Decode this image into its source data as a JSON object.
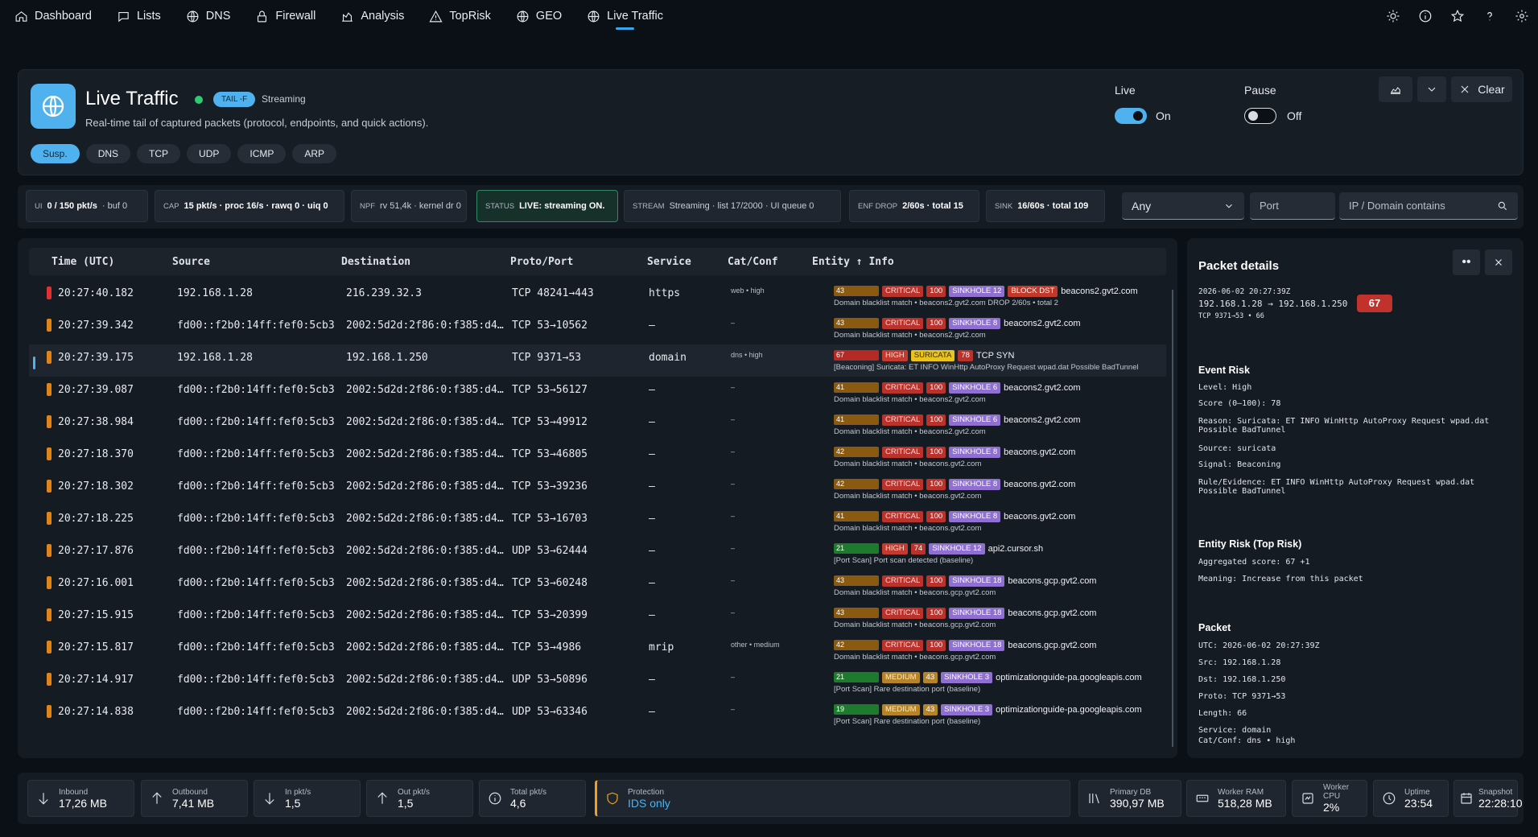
{
  "nav": {
    "items": [
      {
        "label": "Dashboard",
        "icon": "home-icon"
      },
      {
        "label": "Lists",
        "icon": "chat-icon"
      },
      {
        "label": "DNS",
        "icon": "globe-icon"
      },
      {
        "label": "Firewall",
        "icon": "lock-icon"
      },
      {
        "label": "Analysis",
        "icon": "chart-icon"
      },
      {
        "label": "TopRisk",
        "icon": "warning-icon"
      },
      {
        "label": "GEO",
        "icon": "globe-icon"
      },
      {
        "label": "Live Traffic",
        "icon": "globe-icon",
        "active": true
      }
    ],
    "right_icons": [
      "sun-icon",
      "info-icon",
      "star-icon",
      "help-icon",
      "gear-icon"
    ]
  },
  "header": {
    "title": "Live Traffic",
    "badge": "TAIL -F",
    "stream_label": "Streaming",
    "subtitle": "Real-time tail of captured packets (protocol, endpoints, and quick actions).",
    "chips": [
      "Susp.",
      "DNS",
      "TCP",
      "UDP",
      "ICMP",
      "ARP"
    ],
    "live": {
      "label": "Live",
      "value": "On",
      "on": true
    },
    "pause": {
      "label": "Pause",
      "value": "Off",
      "on": false
    },
    "clear_label": "Clear"
  },
  "stats": {
    "ui": {
      "k": "UI",
      "v": "0 / 150 pkt/s",
      "r": "· buf 0"
    },
    "cap": {
      "k": "CAP",
      "v": "15 pkt/s · proc 16/s · rawq 0 · uiq 0"
    },
    "npf": {
      "k": "NPF",
      "r": "rv 51,4k · kernel dr 0"
    },
    "status": {
      "k": "STATUS",
      "v": "LIVE: streaming ON."
    },
    "stream": {
      "k": "STREAM",
      "r": "Streaming · list 17/2000 · UI queue 0"
    },
    "enf": {
      "k": "ENF DROP",
      "v": "2/60s · total 15"
    },
    "sink": {
      "k": "SINK",
      "v": "16/60s · total 109"
    }
  },
  "filters": {
    "any": "Any",
    "port_placeholder": "Port",
    "ip_placeholder": "IP / Domain contains"
  },
  "table": {
    "headers": [
      "Time (UTC)",
      "Source",
      "Destination",
      "Proto/Port",
      "Service",
      "Cat/Conf",
      "Entity ↑ Info"
    ],
    "rows": [
      {
        "time": "20:27:40.182",
        "src": "192.168.1.28",
        "dst": "216.239.32.3",
        "proto": "TCP 48241→443",
        "svc": "https",
        "cat": "web • high",
        "sev": "#e03131",
        "score": "43",
        "scolor": "amber",
        "tags": [
          [
            "CRITICAL",
            "crit"
          ],
          [
            "100",
            "num"
          ],
          [
            "SINKHOLE 12",
            "sink"
          ],
          [
            "BLOCK DST",
            "block"
          ]
        ],
        "domain": "beacons2.gvt2.com",
        "note": "Domain blacklist match • beacons2.gvt2.com   DROP 2/60s • total 2"
      },
      {
        "time": "20:27:39.342",
        "src": "fd00::f2b0:14ff:fef0:5cb3",
        "dst": "2002:5d2d:2f86:0:f385:d4…",
        "proto": "TCP 53→10562",
        "svc": "—",
        "cat": "–",
        "sev": "#e0841a",
        "score": "43",
        "scolor": "amber",
        "tags": [
          [
            "CRITICAL",
            "crit"
          ],
          [
            "100",
            "num"
          ],
          [
            "SINKHOLE 8",
            "sink"
          ]
        ],
        "domain": "beacons2.gvt2.com",
        "note": "Domain blacklist match • beacons2.gvt2.com"
      },
      {
        "time": "20:27:39.175",
        "src": "192.168.1.28",
        "dst": "192.168.1.250",
        "proto": "TCP 9371→53",
        "svc": "domain",
        "cat": "dns • high",
        "sev": "#e0841a",
        "score": "67",
        "scolor": "red",
        "sel": true,
        "tags": [
          [
            "HIGH",
            "high"
          ],
          [
            "SURICATA",
            "suri"
          ],
          [
            "78",
            "num"
          ]
        ],
        "domain": "TCP SYN",
        "note": "[Beaconing] Suricata: ET INFO WinHttp AutoProxy Request wpad.dat Possible BadTunnel"
      },
      {
        "time": "20:27:39.087",
        "src": "fd00::f2b0:14ff:fef0:5cb3",
        "dst": "2002:5d2d:2f86:0:f385:d4…",
        "proto": "TCP 53→56127",
        "svc": "—",
        "cat": "–",
        "sev": "#e0841a",
        "score": "41",
        "scolor": "amber",
        "tags": [
          [
            "CRITICAL",
            "crit"
          ],
          [
            "100",
            "num"
          ],
          [
            "SINKHOLE 6",
            "sink"
          ]
        ],
        "domain": "beacons2.gvt2.com",
        "note": "Domain blacklist match • beacons2.gvt2.com"
      },
      {
        "time": "20:27:38.984",
        "src": "fd00::f2b0:14ff:fef0:5cb3",
        "dst": "2002:5d2d:2f86:0:f385:d4…",
        "proto": "TCP 53→49912",
        "svc": "—",
        "cat": "–",
        "sev": "#e0841a",
        "score": "41",
        "scolor": "amber",
        "tags": [
          [
            "CRITICAL",
            "crit"
          ],
          [
            "100",
            "num"
          ],
          [
            "SINKHOLE 6",
            "sink"
          ]
        ],
        "domain": "beacons2.gvt2.com",
        "note": "Domain blacklist match • beacons2.gvt2.com"
      },
      {
        "time": "20:27:18.370",
        "src": "fd00::f2b0:14ff:fef0:5cb3",
        "dst": "2002:5d2d:2f86:0:f385:d4…",
        "proto": "TCP 53→46805",
        "svc": "—",
        "cat": "–",
        "sev": "#e0841a",
        "score": "42",
        "scolor": "amber",
        "tags": [
          [
            "CRITICAL",
            "crit"
          ],
          [
            "100",
            "num"
          ],
          [
            "SINKHOLE 8",
            "sink"
          ]
        ],
        "domain": "beacons.gvt2.com",
        "note": "Domain blacklist match • beacons.gvt2.com"
      },
      {
        "time": "20:27:18.302",
        "src": "fd00::f2b0:14ff:fef0:5cb3",
        "dst": "2002:5d2d:2f86:0:f385:d4…",
        "proto": "TCP 53→39236",
        "svc": "—",
        "cat": "–",
        "sev": "#e0841a",
        "score": "42",
        "scolor": "amber",
        "tags": [
          [
            "CRITICAL",
            "crit"
          ],
          [
            "100",
            "num"
          ],
          [
            "SINKHOLE 8",
            "sink"
          ]
        ],
        "domain": "beacons.gvt2.com",
        "note": "Domain blacklist match • beacons.gvt2.com"
      },
      {
        "time": "20:27:18.225",
        "src": "fd00::f2b0:14ff:fef0:5cb3",
        "dst": "2002:5d2d:2f86:0:f385:d4…",
        "proto": "TCP 53→16703",
        "svc": "—",
        "cat": "–",
        "sev": "#e0841a",
        "score": "41",
        "scolor": "amber",
        "tags": [
          [
            "CRITICAL",
            "crit"
          ],
          [
            "100",
            "num"
          ],
          [
            "SINKHOLE 8",
            "sink"
          ]
        ],
        "domain": "beacons.gvt2.com",
        "note": "Domain blacklist match • beacons.gvt2.com"
      },
      {
        "time": "20:27:17.876",
        "src": "fd00::f2b0:14ff:fef0:5cb3",
        "dst": "2002:5d2d:2f86:0:f385:d4…",
        "proto": "UDP 53→62444",
        "svc": "—",
        "cat": "–",
        "sev": "#e0841a",
        "score": "21",
        "scolor": "green",
        "tags": [
          [
            "HIGH",
            "high"
          ],
          [
            "74",
            "num"
          ],
          [
            "SINKHOLE 12",
            "sink"
          ]
        ],
        "domain": "api2.cursor.sh",
        "note": "[Port Scan] Port scan detected (baseline)"
      },
      {
        "time": "20:27:16.001",
        "src": "fd00::f2b0:14ff:fef0:5cb3",
        "dst": "2002:5d2d:2f86:0:f385:d4…",
        "proto": "TCP 53→60248",
        "svc": "—",
        "cat": "–",
        "sev": "#e0841a",
        "score": "43",
        "scolor": "amber",
        "tags": [
          [
            "CRITICAL",
            "crit"
          ],
          [
            "100",
            "num"
          ],
          [
            "SINKHOLE 18",
            "sink"
          ]
        ],
        "domain": "beacons.gcp.gvt2.com",
        "note": "Domain blacklist match • beacons.gcp.gvt2.com"
      },
      {
        "time": "20:27:15.915",
        "src": "fd00::f2b0:14ff:fef0:5cb3",
        "dst": "2002:5d2d:2f86:0:f385:d4…",
        "proto": "TCP 53→20399",
        "svc": "—",
        "cat": "–",
        "sev": "#e0841a",
        "score": "43",
        "scolor": "amber",
        "tags": [
          [
            "CRITICAL",
            "crit"
          ],
          [
            "100",
            "num"
          ],
          [
            "SINKHOLE 18",
            "sink"
          ]
        ],
        "domain": "beacons.gcp.gvt2.com",
        "note": "Domain blacklist match • beacons.gcp.gvt2.com"
      },
      {
        "time": "20:27:15.817",
        "src": "fd00::f2b0:14ff:fef0:5cb3",
        "dst": "2002:5d2d:2f86:0:f385:d4…",
        "proto": "TCP 53→4986",
        "svc": "mrip",
        "cat": "other • medium",
        "sev": "#e0841a",
        "score": "42",
        "scolor": "amber",
        "tags": [
          [
            "CRITICAL",
            "crit"
          ],
          [
            "100",
            "num"
          ],
          [
            "SINKHOLE 18",
            "sink"
          ]
        ],
        "domain": "beacons.gcp.gvt2.com",
        "note": "Domain blacklist match • beacons.gcp.gvt2.com"
      },
      {
        "time": "20:27:14.917",
        "src": "fd00::f2b0:14ff:fef0:5cb3",
        "dst": "2002:5d2d:2f86:0:f385:d4…",
        "proto": "UDP 53→50896",
        "svc": "—",
        "cat": "–",
        "sev": "#e0841a",
        "score": "21",
        "scolor": "green",
        "tags": [
          [
            "MEDIUM",
            "med"
          ],
          [
            "43",
            "numy"
          ],
          [
            "SINKHOLE 3",
            "sink"
          ]
        ],
        "domain": "optimizationguide-pa.googleapis.com",
        "note": "[Port Scan] Rare destination port (baseline)"
      },
      {
        "time": "20:27:14.838",
        "src": "fd00::f2b0:14ff:fef0:5cb3",
        "dst": "2002:5d2d:2f86:0:f385:d4…",
        "proto": "UDP 53→63346",
        "svc": "—",
        "cat": "–",
        "sev": "#e0841a",
        "score": "19",
        "scolor": "green",
        "tags": [
          [
            "MEDIUM",
            "med"
          ],
          [
            "43",
            "numy"
          ],
          [
            "SINKHOLE 3",
            "sink"
          ]
        ],
        "domain": "optimizationguide-pa.googleapis.com",
        "note": "[Port Scan] Rare destination port (baseline)"
      }
    ]
  },
  "details": {
    "title": "Packet details",
    "ts": "2026-06-02 20:27:39Z",
    "flow": "192.168.1.28 → 192.168.1.250",
    "meta": "TCP 9371→53 • 66",
    "score": "67",
    "event_title": "Event Risk",
    "event": [
      "Level: High",
      "Score (0–100): 78",
      "Reason: Suricata: ET INFO WinHttp AutoProxy Request wpad.dat\nPossible BadTunnel",
      "Source: suricata",
      "Signal: Beaconing",
      "Rule/Evidence: ET INFO WinHttp AutoProxy Request wpad.dat\nPossible BadTunnel"
    ],
    "entity_title": "Entity Risk (Top Risk)",
    "entity": [
      "Aggregated score: 67 +1",
      "Meaning: Increase from this packet"
    ],
    "packet_title": "Packet",
    "packet": [
      "UTC: 2026-06-02 20:27:39Z",
      "Src: 192.168.1.28",
      "Dst: 192.168.1.250",
      "Proto: TCP 9371→53",
      "Length: 66",
      "Service: domain",
      "Cat/Conf: dns • high"
    ]
  },
  "bottom": [
    {
      "k": "Inbound",
      "v": "17,26 MB",
      "icon": "arrow-down-icon"
    },
    {
      "k": "Outbound",
      "v": "7,41 MB",
      "icon": "arrow-up-icon"
    },
    {
      "k": "In pkt/s",
      "v": "1,5",
      "icon": "arrow-down-icon"
    },
    {
      "k": "Out pkt/s",
      "v": "1,5",
      "icon": "arrow-up-icon"
    },
    {
      "k": "Total pkt/s",
      "v": "4,6",
      "icon": "info-icon"
    },
    {
      "k": "Protection",
      "v": "IDS only",
      "icon": "shield-icon"
    },
    {
      "k": "Primary DB",
      "v": "390,97 MB",
      "icon": "database-icon"
    },
    {
      "k": "Worker RAM",
      "v": "518,28 MB",
      "icon": "memory-icon"
    },
    {
      "k": "Worker CPU",
      "v": "2%",
      "icon": "cpu-icon"
    },
    {
      "k": "Uptime",
      "v": "23:54",
      "icon": "clock-icon"
    },
    {
      "k": "Snapshot",
      "v": "22:28:10",
      "icon": "calendar-icon"
    }
  ],
  "colors": {
    "accent": "#4fb2ef",
    "critical": "#b9322b",
    "sinkhole": "#8f6fd0",
    "suricata": "#e9c41f",
    "status_ok": "#2ecc71"
  }
}
